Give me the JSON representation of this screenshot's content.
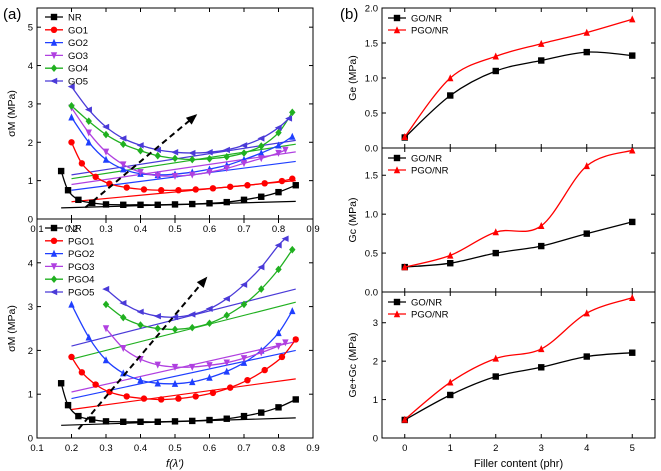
{
  "figure": {
    "label_a": "(a)",
    "label_b": "(b)"
  },
  "chart_data": [
    {
      "id": "a_top",
      "type": "scatter",
      "panel": "(a)",
      "xlabel": "f(λ')",
      "ylabel": "σM (MPa)",
      "xlim": [
        0.1,
        0.9
      ],
      "ylim": [
        0,
        5.5
      ],
      "xticks": [
        "0.1",
        "0.2",
        "0.3",
        "0.4",
        "0.5",
        "0.6",
        "0.7",
        "0.8",
        "0.9"
      ],
      "yticks": [
        "0",
        "1",
        "2",
        "3",
        "4",
        "5"
      ],
      "legend": {
        "placement": "top-left"
      },
      "series": [
        {
          "name": "NR",
          "color": "#000000",
          "marker": "square",
          "x": [
            0.17,
            0.19,
            0.22,
            0.26,
            0.3,
            0.35,
            0.4,
            0.45,
            0.5,
            0.55,
            0.6,
            0.65,
            0.7,
            0.75,
            0.8,
            0.85
          ],
          "y": [
            1.25,
            0.75,
            0.5,
            0.42,
            0.38,
            0.37,
            0.37,
            0.37,
            0.38,
            0.39,
            0.41,
            0.44,
            0.5,
            0.58,
            0.7,
            0.88
          ],
          "fit": [
            [
              0.17,
              0.29
            ],
            [
              0.85,
              0.46
            ]
          ]
        },
        {
          "name": "GO1",
          "color": "#ff0000",
          "marker": "circle",
          "x": [
            0.2,
            0.23,
            0.27,
            0.31,
            0.36,
            0.41,
            0.46,
            0.51,
            0.56,
            0.61,
            0.66,
            0.71,
            0.76,
            0.81,
            0.84
          ],
          "y": [
            2.0,
            1.45,
            1.1,
            0.92,
            0.82,
            0.77,
            0.75,
            0.75,
            0.77,
            0.8,
            0.84,
            0.88,
            0.93,
            0.99,
            1.05
          ],
          "fit": [
            [
              0.2,
              0.45
            ],
            [
              0.85,
              1.0
            ]
          ]
        },
        {
          "name": "GO2",
          "color": "#1f3fff",
          "marker": "triangle-up",
          "x": [
            0.2,
            0.25,
            0.3,
            0.35,
            0.4,
            0.45,
            0.5,
            0.55,
            0.6,
            0.65,
            0.7,
            0.75,
            0.8,
            0.84
          ],
          "y": [
            2.65,
            2.0,
            1.55,
            1.3,
            1.18,
            1.15,
            1.17,
            1.22,
            1.3,
            1.4,
            1.55,
            1.72,
            1.92,
            2.15
          ],
          "fit": [
            [
              0.2,
              0.75
            ],
            [
              0.85,
              1.5
            ]
          ]
        },
        {
          "name": "GO3",
          "color": "#b040e0",
          "marker": "triangle-down",
          "x": [
            0.2,
            0.25,
            0.3,
            0.35,
            0.4,
            0.45,
            0.5,
            0.55,
            0.6,
            0.65,
            0.7,
            0.75,
            0.8,
            0.82
          ],
          "y": [
            2.9,
            2.25,
            1.75,
            1.42,
            1.22,
            1.13,
            1.12,
            1.15,
            1.22,
            1.32,
            1.45,
            1.58,
            1.72,
            1.8
          ],
          "fit": [
            [
              0.2,
              0.9
            ],
            [
              0.85,
              1.75
            ]
          ]
        },
        {
          "name": "GO4",
          "color": "#20b020",
          "marker": "diamond",
          "x": [
            0.2,
            0.25,
            0.3,
            0.35,
            0.4,
            0.45,
            0.5,
            0.55,
            0.6,
            0.65,
            0.7,
            0.75,
            0.8,
            0.84
          ],
          "y": [
            2.95,
            2.55,
            2.2,
            1.95,
            1.78,
            1.65,
            1.58,
            1.55,
            1.57,
            1.62,
            1.72,
            1.9,
            2.25,
            2.78
          ],
          "fit": [
            [
              0.2,
              1.05
            ],
            [
              0.85,
              1.95
            ]
          ]
        },
        {
          "name": "GO5",
          "color": "#4a3ad8",
          "marker": "triangle-left",
          "x": [
            0.2,
            0.25,
            0.3,
            0.35,
            0.4,
            0.45,
            0.5,
            0.55,
            0.6,
            0.65,
            0.7,
            0.75,
            0.8,
            0.83
          ],
          "y": [
            3.45,
            2.85,
            2.4,
            2.1,
            1.92,
            1.8,
            1.74,
            1.72,
            1.74,
            1.8,
            1.92,
            2.1,
            2.38,
            2.62
          ],
          "fit": [
            [
              0.2,
              1.15
            ],
            [
              0.85,
              2.05
            ]
          ]
        }
      ],
      "arrow": {
        "from": [
          0.24,
          0.3
        ],
        "to": [
          0.56,
          2.7
        ]
      }
    },
    {
      "id": "a_bottom",
      "type": "scatter",
      "panel": "(a)",
      "xlabel": "f(λ')",
      "ylabel": "σM (MPa)",
      "xlim": [
        0.1,
        0.9
      ],
      "ylim": [
        0,
        5
      ],
      "xticks": [
        "0.1",
        "0.2",
        "0.3",
        "0.4",
        "0.5",
        "0.6",
        "0.7",
        "0.8",
        "0.9"
      ],
      "yticks": [
        "0",
        "1",
        "2",
        "3",
        "4"
      ],
      "legend": {
        "placement": "top-left"
      },
      "series": [
        {
          "name": "NR",
          "color": "#000000",
          "marker": "square",
          "x": [
            0.17,
            0.19,
            0.22,
            0.26,
            0.3,
            0.35,
            0.4,
            0.45,
            0.5,
            0.55,
            0.6,
            0.65,
            0.7,
            0.75,
            0.8,
            0.85
          ],
          "y": [
            1.25,
            0.75,
            0.5,
            0.42,
            0.38,
            0.37,
            0.37,
            0.37,
            0.38,
            0.39,
            0.41,
            0.44,
            0.5,
            0.58,
            0.7,
            0.88
          ],
          "fit": [
            [
              0.17,
              0.29
            ],
            [
              0.85,
              0.46
            ]
          ]
        },
        {
          "name": "PGO1",
          "color": "#ff0000",
          "marker": "circle",
          "x": [
            0.2,
            0.23,
            0.27,
            0.31,
            0.36,
            0.41,
            0.46,
            0.51,
            0.56,
            0.61,
            0.66,
            0.71,
            0.76,
            0.81,
            0.85
          ],
          "y": [
            1.85,
            1.5,
            1.22,
            1.05,
            0.95,
            0.9,
            0.88,
            0.9,
            0.95,
            1.03,
            1.15,
            1.32,
            1.55,
            1.85,
            2.25
          ],
          "fit": [
            [
              0.2,
              0.65
            ],
            [
              0.85,
              1.35
            ]
          ]
        },
        {
          "name": "PGO2",
          "color": "#1f3fff",
          "marker": "triangle-up",
          "x": [
            0.2,
            0.25,
            0.3,
            0.35,
            0.4,
            0.45,
            0.5,
            0.55,
            0.6,
            0.65,
            0.7,
            0.75,
            0.8,
            0.84
          ],
          "y": [
            3.05,
            2.3,
            1.78,
            1.48,
            1.32,
            1.25,
            1.24,
            1.28,
            1.38,
            1.52,
            1.72,
            2.0,
            2.4,
            2.9
          ],
          "fit": [
            [
              0.2,
              0.9
            ],
            [
              0.85,
              2.0
            ]
          ]
        },
        {
          "name": "PGO3",
          "color": "#b040e0",
          "marker": "triangle-down",
          "x": [
            0.3,
            0.35,
            0.4,
            0.45,
            0.5,
            0.55,
            0.6,
            0.65,
            0.7,
            0.75,
            0.8,
            0.82
          ],
          "y": [
            2.5,
            2.05,
            1.8,
            1.67,
            1.62,
            1.62,
            1.66,
            1.72,
            1.82,
            1.95,
            2.1,
            2.18
          ],
          "fit": [
            [
              0.2,
              1.05
            ],
            [
              0.85,
              2.2
            ]
          ]
        },
        {
          "name": "PGO4",
          "color": "#20b020",
          "marker": "diamond",
          "x": [
            0.3,
            0.35,
            0.4,
            0.45,
            0.5,
            0.55,
            0.6,
            0.65,
            0.7,
            0.75,
            0.8,
            0.84
          ],
          "y": [
            3.05,
            2.75,
            2.58,
            2.5,
            2.48,
            2.52,
            2.62,
            2.8,
            3.05,
            3.4,
            3.85,
            4.3
          ],
          "fit": [
            [
              0.2,
              1.8
            ],
            [
              0.85,
              3.1
            ]
          ]
        },
        {
          "name": "PGO5",
          "color": "#4a3ad8",
          "marker": "triangle-left",
          "x": [
            0.3,
            0.35,
            0.4,
            0.45,
            0.5,
            0.55,
            0.6,
            0.65,
            0.7,
            0.75,
            0.8,
            0.82
          ],
          "y": [
            3.4,
            3.08,
            2.88,
            2.78,
            2.76,
            2.82,
            2.95,
            3.18,
            3.5,
            3.9,
            4.4,
            4.55
          ],
          "fit": [
            [
              0.2,
              2.1
            ],
            [
              0.85,
              3.4
            ]
          ]
        }
      ],
      "arrow": {
        "from": [
          0.22,
          0.2
        ],
        "to": [
          0.59,
          3.65
        ]
      }
    },
    {
      "id": "b1",
      "type": "line",
      "panel": "(b)",
      "xlabel": "",
      "ylabel": "Ge (MPa)",
      "xlim": [
        -0.5,
        5.5
      ],
      "ylim": [
        0,
        2.0
      ],
      "yticks": [
        "0.0",
        "0.5",
        "1.0",
        "1.5",
        "2.0"
      ],
      "legend": {
        "placement": "top-left"
      },
      "categories": [
        0,
        1,
        2,
        3,
        4,
        5
      ],
      "series": [
        {
          "name": "GO/NR",
          "color": "#000000",
          "marker": "square",
          "values": [
            0.15,
            0.75,
            1.1,
            1.25,
            1.37,
            1.32
          ]
        },
        {
          "name": "PGO/NR",
          "color": "#ff0000",
          "marker": "triangle-up",
          "values": [
            0.16,
            1.0,
            1.31,
            1.49,
            1.65,
            1.84
          ]
        }
      ]
    },
    {
      "id": "b2",
      "type": "line",
      "panel": "(b)",
      "xlabel": "",
      "ylabel": "Gc (MPa)",
      "xlim": [
        -0.5,
        5.5
      ],
      "ylim": [
        0,
        1.85
      ],
      "yticks": [
        "0.0",
        "0.5",
        "1.0",
        "1.5"
      ],
      "legend": {
        "placement": "top-left"
      },
      "categories": [
        0,
        1,
        2,
        3,
        4,
        5
      ],
      "series": [
        {
          "name": "GO/NR",
          "color": "#000000",
          "marker": "square",
          "values": [
            0.32,
            0.37,
            0.5,
            0.59,
            0.75,
            0.9
          ]
        },
        {
          "name": "PGO/NR",
          "color": "#ff0000",
          "marker": "triangle-up",
          "values": [
            0.32,
            0.47,
            0.77,
            0.85,
            1.62,
            1.82
          ]
        }
      ]
    },
    {
      "id": "b3",
      "type": "line",
      "panel": "(b)",
      "xlabel": "Filler content (phr)",
      "ylabel": "Ge+Gc (MPa)",
      "xlim": [
        -0.5,
        5.5
      ],
      "ylim": [
        0,
        3.8
      ],
      "xticks": [
        "0",
        "1",
        "2",
        "3",
        "4",
        "5"
      ],
      "yticks": [
        "0",
        "1",
        "2",
        "3"
      ],
      "legend": {
        "placement": "top-left"
      },
      "categories": [
        0,
        1,
        2,
        3,
        4,
        5
      ],
      "series": [
        {
          "name": "GO/NR",
          "color": "#000000",
          "marker": "square",
          "values": [
            0.47,
            1.12,
            1.6,
            1.84,
            2.12,
            2.22
          ]
        },
        {
          "name": "PGO/NR",
          "color": "#ff0000",
          "marker": "triangle-up",
          "values": [
            0.48,
            1.45,
            2.07,
            2.32,
            3.25,
            3.65
          ]
        }
      ]
    }
  ]
}
